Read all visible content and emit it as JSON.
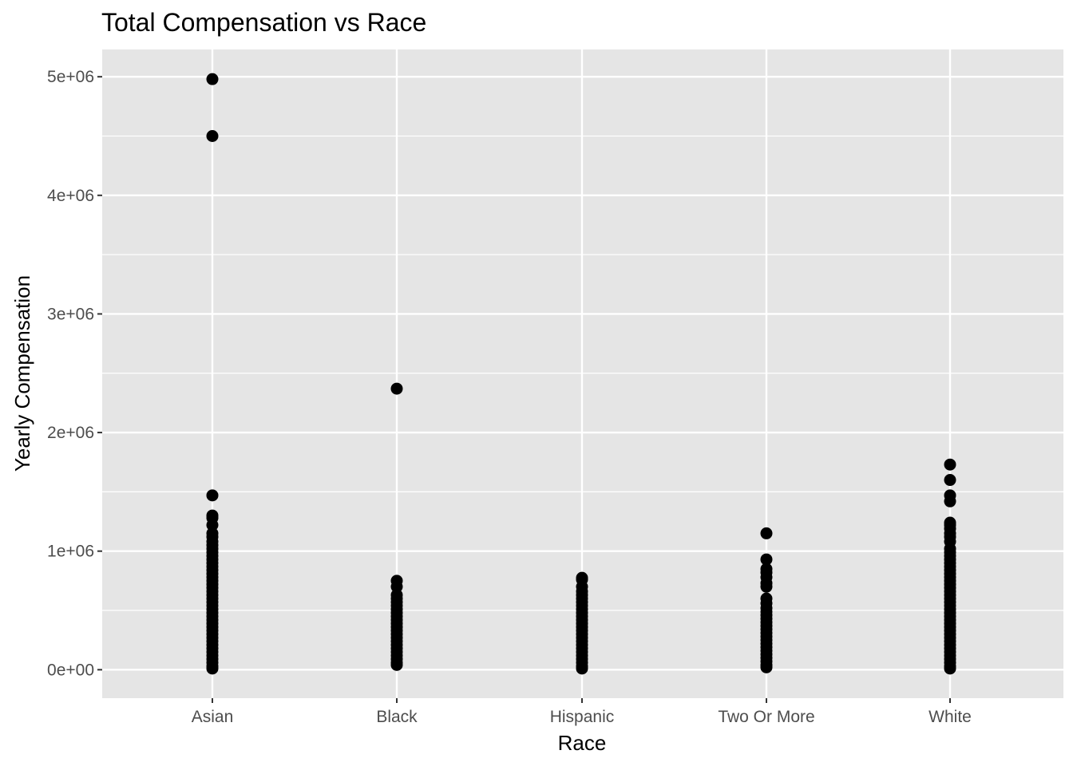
{
  "chart_data": {
    "type": "scatter",
    "title": "Total Compensation vs Race",
    "xlabel": "Race",
    "ylabel": "Yearly Compensation",
    "categories": [
      "Asian",
      "Black",
      "Hispanic",
      "Two Or More",
      "White"
    ],
    "ylim": [
      -240000,
      5230000
    ],
    "y_ticks": [
      {
        "value": 0,
        "label": "0e+00"
      },
      {
        "value": 1000000,
        "label": "1e+06"
      },
      {
        "value": 2000000,
        "label": "2e+06"
      },
      {
        "value": 3000000,
        "label": "3e+06"
      },
      {
        "value": 4000000,
        "label": "4e+06"
      },
      {
        "value": 5000000,
        "label": "5e+06"
      }
    ],
    "grid": true,
    "legend": "none",
    "point_color": "#000000",
    "panel_background": "#e5e5e5",
    "grid_color": "#ffffff",
    "points": {
      "Asian": [
        4980000,
        4500000,
        1470000,
        1300000,
        1280000,
        1220000,
        1150000,
        1120000,
        1080000,
        1050000,
        1020000,
        990000,
        960000,
        930000,
        900000,
        870000,
        840000,
        810000,
        780000,
        750000,
        720000,
        690000,
        660000,
        630000,
        600000,
        570000,
        540000,
        510000,
        480000,
        450000,
        420000,
        390000,
        360000,
        330000,
        300000,
        270000,
        240000,
        210000,
        180000,
        150000,
        120000,
        90000,
        60000,
        30000,
        10000
      ],
      "Black": [
        2370000,
        750000,
        700000,
        630000,
        600000,
        570000,
        540000,
        510000,
        480000,
        450000,
        420000,
        390000,
        360000,
        330000,
        300000,
        270000,
        240000,
        210000,
        180000,
        150000,
        120000,
        90000,
        60000,
        40000
      ],
      "Hispanic": [
        775000,
        760000,
        700000,
        660000,
        630000,
        600000,
        570000,
        540000,
        510000,
        480000,
        450000,
        420000,
        390000,
        360000,
        330000,
        300000,
        270000,
        240000,
        210000,
        180000,
        150000,
        120000,
        90000,
        60000,
        30000,
        10000
      ],
      "Two Or More": [
        1150000,
        930000,
        850000,
        820000,
        780000,
        730000,
        700000,
        600000,
        560000,
        520000,
        490000,
        460000,
        430000,
        400000,
        370000,
        340000,
        310000,
        280000,
        250000,
        220000,
        190000,
        160000,
        130000,
        100000,
        70000,
        40000,
        20000
      ],
      "White": [
        1730000,
        1600000,
        1470000,
        1420000,
        1240000,
        1220000,
        1190000,
        1150000,
        1120000,
        1080000,
        1020000,
        990000,
        960000,
        930000,
        900000,
        870000,
        840000,
        810000,
        780000,
        750000,
        720000,
        690000,
        660000,
        630000,
        600000,
        570000,
        540000,
        510000,
        480000,
        450000,
        420000,
        390000,
        360000,
        330000,
        300000,
        270000,
        240000,
        210000,
        180000,
        150000,
        120000,
        90000,
        60000,
        30000,
        10000
      ]
    }
  }
}
